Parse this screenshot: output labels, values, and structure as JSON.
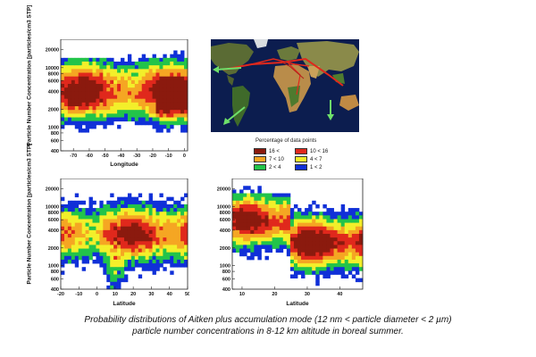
{
  "chart_data": [
    {
      "type": "heatmap",
      "ylabel": "Particle Number Concentration [particles/cm3 STP]",
      "xlabel": "Longitude",
      "xticks": [
        "-70",
        "-60",
        "-50",
        "-40",
        "-30",
        "-20",
        "-10",
        "0"
      ],
      "yticks": [
        "400",
        "600",
        "800",
        "1000",
        "2000",
        "4000",
        "6000",
        "8000",
        "10000",
        "20000"
      ],
      "xlim": [
        -78,
        2
      ],
      "ylog": true,
      "ylim": [
        400,
        30000
      ]
    },
    {
      "type": "heatmap",
      "ylabel": "Particle Number Concentration [particles/cm3 STP]",
      "xlabel": "Latitude",
      "xticks": [
        "-20",
        "-10",
        "0",
        "10",
        "20",
        "30",
        "40",
        "50"
      ],
      "yticks": [
        "400",
        "600",
        "800",
        "1000",
        "2000",
        "4000",
        "6000",
        "8000",
        "10000",
        "20000"
      ],
      "xlim": [
        -20,
        50
      ],
      "ylog": true,
      "ylim": [
        400,
        30000
      ]
    },
    {
      "type": "heatmap",
      "ylabel": "",
      "xlabel": "Latitude",
      "xticks": [
        "10",
        "20",
        "30",
        "40"
      ],
      "yticks": [
        "400",
        "600",
        "800",
        "1000",
        "2000",
        "4000",
        "6000",
        "8000",
        "10000",
        "20000"
      ],
      "xlim": [
        7,
        47
      ],
      "ylog": true,
      "ylim": [
        400,
        30000
      ]
    }
  ],
  "legend": {
    "title": "Percentage of data points",
    "items": [
      {
        "label": "16 <",
        "color": "#8b1a0e"
      },
      {
        "label": "10 < 16",
        "color": "#e0281c"
      },
      {
        "label": "7 < 10",
        "color": "#f5a623"
      },
      {
        "label": "4 < 7",
        "color": "#f3ef2a"
      },
      {
        "label": "2 < 4",
        "color": "#22c44a"
      },
      {
        "label": "1 < 2",
        "color": "#1030d8"
      }
    ]
  },
  "map": {
    "route_color": "#e0281c",
    "arrow_color": "#6ee06a"
  },
  "caption": {
    "line1": "Probability distributions of Aitken plus accumulation mode (12 nm < particle diameter < 2 µm)",
    "line2": "particle number concentrations in 8-12 km altitude in boreal summer."
  }
}
